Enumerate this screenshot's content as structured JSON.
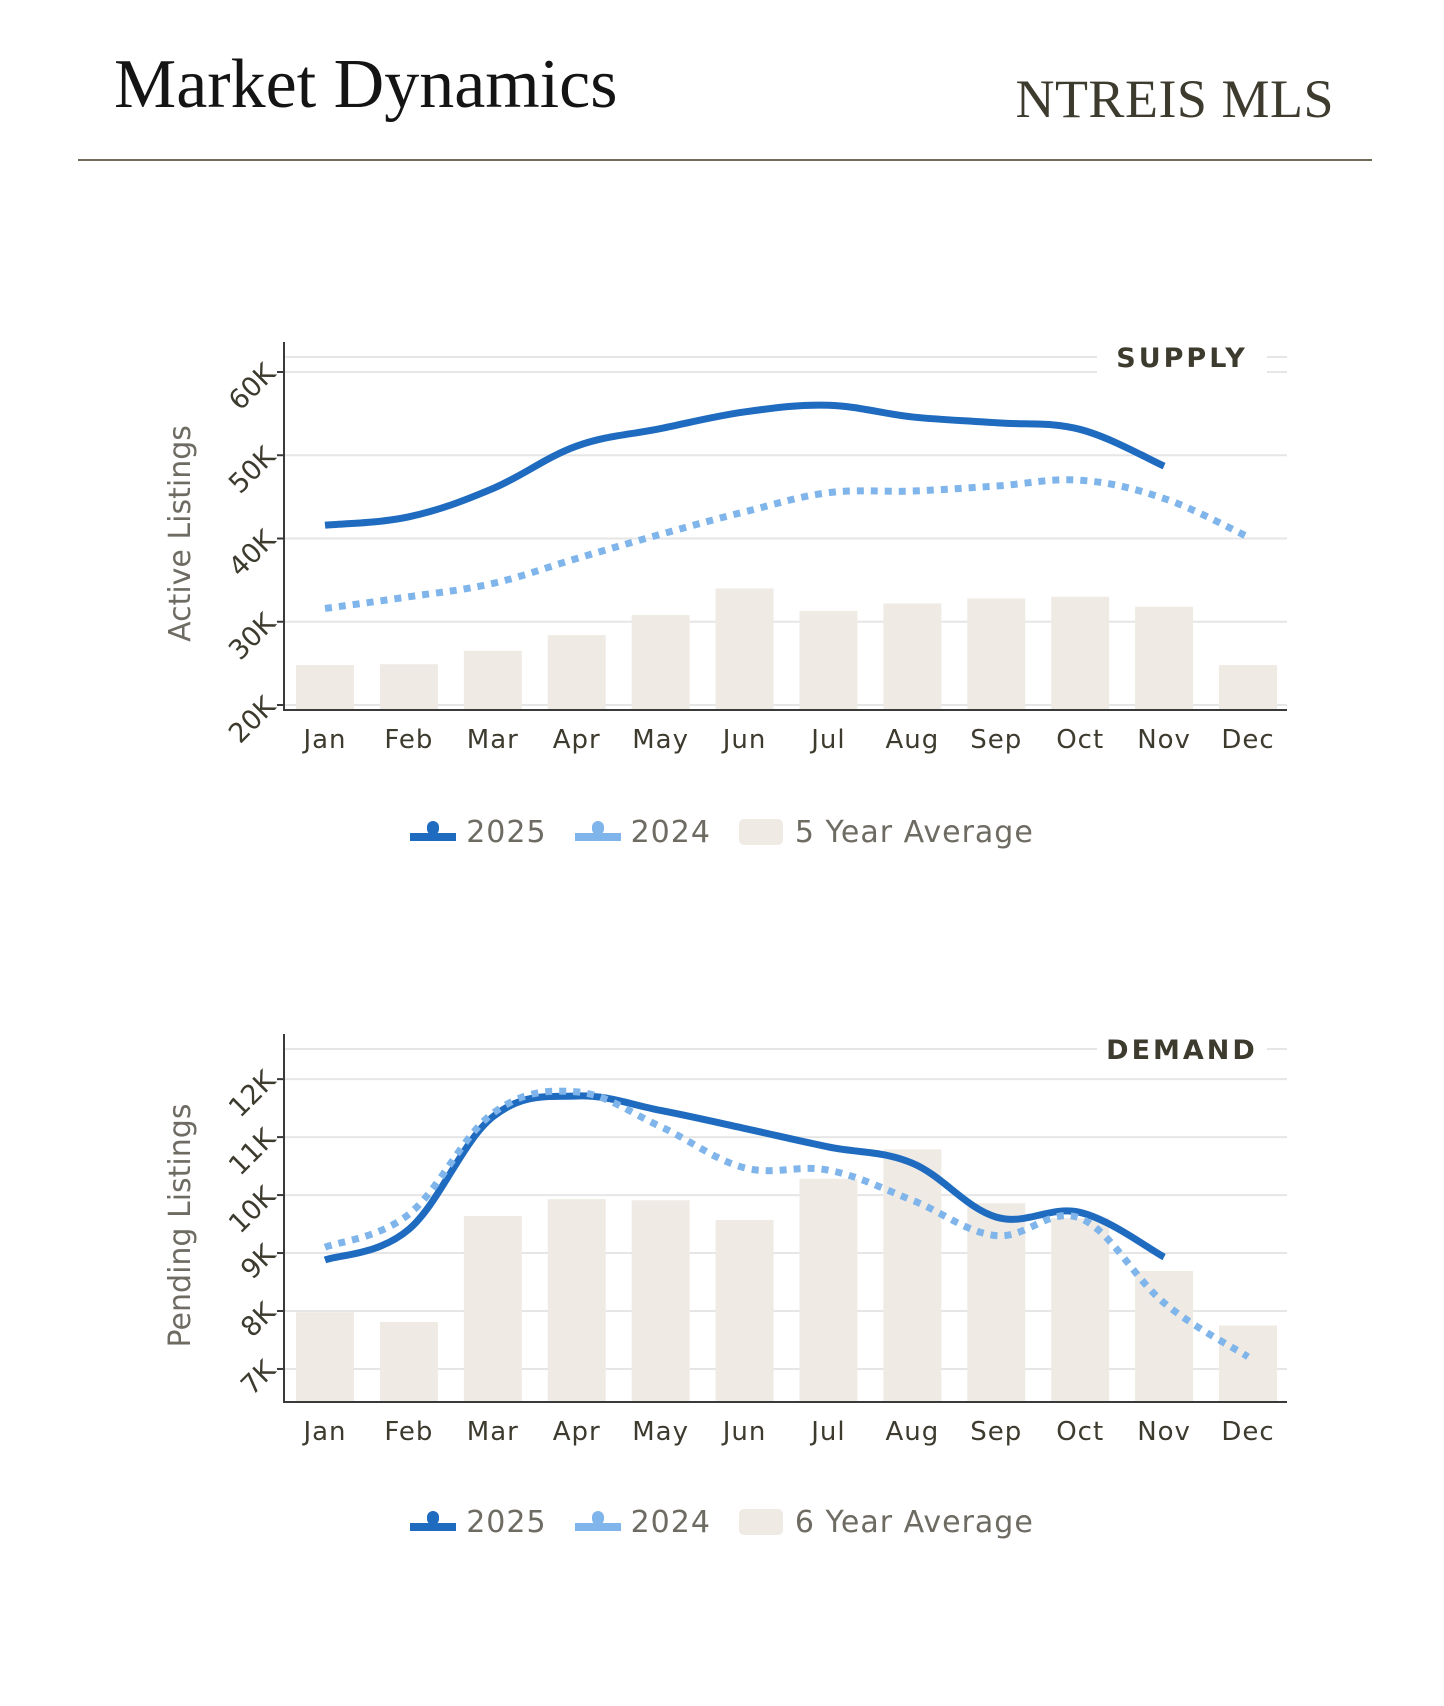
{
  "header": {
    "title": "Market Dynamics",
    "brand": "NTREIS MLS"
  },
  "colors": {
    "series_2025": "#1f6bbf",
    "series_2024": "#7fb5ea",
    "average_bars": "#efebe4",
    "axis": "#3a3a3a",
    "grid": "#e6e6e6",
    "text_dark": "#3d3a2e",
    "text_muted": "#6e6b63"
  },
  "chart_data": [
    {
      "type": "bar+line",
      "title": "SUPPLY",
      "xlabel": "",
      "ylabel": "Active Listings",
      "categories": [
        "Jan",
        "Feb",
        "Mar",
        "Apr",
        "May",
        "Jun",
        "Jul",
        "Aug",
        "Sep",
        "Oct",
        "Nov",
        "Dec"
      ],
      "yticks": [
        20000,
        30000,
        40000,
        50000,
        60000
      ],
      "ytick_labels": [
        "20K",
        "30K",
        "40K",
        "50K",
        "60K"
      ],
      "ylim": [
        19400,
        61800
      ],
      "grid": true,
      "legend_position": "bottom-center",
      "series": [
        {
          "name": "2025",
          "kind": "line",
          "style": "solid",
          "values": [
            41600,
            42600,
            46000,
            51100,
            53200,
            55200,
            56000,
            54600,
            53900,
            53100,
            48700,
            null
          ]
        },
        {
          "name": "2024",
          "kind": "line",
          "style": "dotted",
          "values": [
            31600,
            33000,
            34600,
            37600,
            40500,
            43200,
            45500,
            45700,
            46300,
            47000,
            44800,
            40200
          ]
        },
        {
          "name": "5 Year Average",
          "kind": "bar",
          "values": [
            24800,
            24900,
            26500,
            28400,
            30800,
            34000,
            31300,
            32200,
            32800,
            33000,
            31800,
            24800
          ]
        }
      ]
    },
    {
      "type": "bar+line",
      "title": "DEMAND",
      "xlabel": "",
      "ylabel": "Pending Listings",
      "categories": [
        "Jan",
        "Feb",
        "Mar",
        "Apr",
        "May",
        "Jun",
        "Jul",
        "Aug",
        "Sep",
        "Oct",
        "Nov",
        "Dec"
      ],
      "yticks": [
        7000,
        8000,
        9000,
        10000,
        11000,
        12000
      ],
      "ytick_labels": [
        "7K",
        "8K",
        "9K",
        "10K",
        "11K",
        "12K"
      ],
      "ylim": [
        6430,
        12520
      ],
      "grid": true,
      "legend_position": "bottom-center",
      "series": [
        {
          "name": "2025",
          "kind": "line",
          "style": "solid",
          "values": [
            8880,
            9410,
            11350,
            11710,
            11460,
            11150,
            10830,
            10550,
            9620,
            9700,
            8930,
            null
          ]
        },
        {
          "name": "2024",
          "kind": "line",
          "style": "dotted",
          "values": [
            9100,
            9670,
            11410,
            11780,
            11180,
            10470,
            10430,
            9910,
            9300,
            9600,
            8140,
            7210
          ]
        },
        {
          "name": "6 Year Average",
          "kind": "bar",
          "values": [
            7980,
            7810,
            9640,
            9930,
            9910,
            9570,
            10280,
            10790,
            9860,
            9600,
            8690,
            7750
          ]
        }
      ]
    }
  ]
}
